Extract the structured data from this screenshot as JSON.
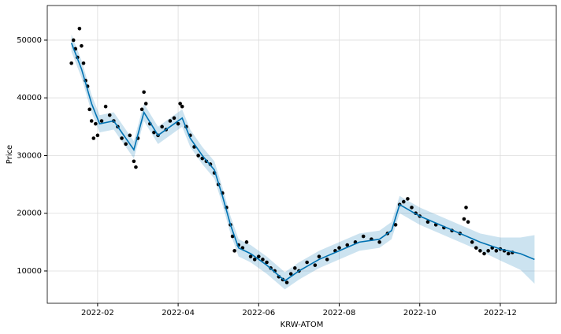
{
  "chart_data": {
    "type": "forecast",
    "x_label": "KRW-ATOM",
    "y_label": "Price",
    "xlim": [
      0.75,
      13.39
    ],
    "ylim": [
      4400,
      56000
    ],
    "xticks": [
      {
        "value": 2,
        "label": "2022-02"
      },
      {
        "value": 4,
        "label": "2022-04"
      },
      {
        "value": 6,
        "label": "2022-06"
      },
      {
        "value": 8,
        "label": "2022-08"
      },
      {
        "value": 10,
        "label": "2022-10"
      },
      {
        "value": 12,
        "label": "2022-12"
      }
    ],
    "yticks": [
      10000,
      20000,
      30000,
      40000,
      50000
    ],
    "grid": true,
    "forecast": {
      "color": "#0072B2",
      "x": [
        1.35,
        1.6,
        1.85,
        2.05,
        2.4,
        2.55,
        2.9,
        3.15,
        3.5,
        3.8,
        4.1,
        4.3,
        4.6,
        4.9,
        5.1,
        5.3,
        5.5,
        5.8,
        6.2,
        6.65,
        7.0,
        7.5,
        8.0,
        8.5,
        9.0,
        9.3,
        9.5,
        10.0,
        10.5,
        11.0,
        11.5,
        12.0,
        12.5,
        12.85
      ],
      "values": [
        49500,
        45000,
        39000,
        35500,
        36000,
        34500,
        31000,
        37500,
        33500,
        35000,
        36500,
        33000,
        30000,
        27500,
        23000,
        18000,
        14000,
        13000,
        11000,
        8300,
        10000,
        12000,
        13500,
        15000,
        15500,
        17000,
        21500,
        19500,
        18000,
        16500,
        15000,
        13800,
        13000,
        12000
      ],
      "upper": [
        51000,
        46500,
        40500,
        37000,
        37500,
        36000,
        32500,
        39000,
        35000,
        36500,
        38000,
        34500,
        31500,
        29000,
        24500,
        19500,
        15500,
        14500,
        12500,
        9800,
        11500,
        13500,
        15000,
        16500,
        17000,
        18500,
        23000,
        21000,
        19500,
        18000,
        16500,
        15800,
        15800,
        16200
      ],
      "lower": [
        48000,
        43500,
        37500,
        34000,
        34500,
        33000,
        29500,
        36000,
        32000,
        33500,
        35000,
        31500,
        28500,
        26000,
        21500,
        16500,
        12500,
        11500,
        9500,
        6800,
        8500,
        10500,
        12000,
        13500,
        14000,
        15500,
        20000,
        18000,
        16500,
        15000,
        13500,
        11800,
        10200,
        7800
      ]
    },
    "observed": {
      "color": "#000000",
      "x": [
        1.35,
        1.4,
        1.45,
        1.5,
        1.55,
        1.6,
        1.65,
        1.7,
        1.75,
        1.8,
        1.85,
        1.9,
        1.95,
        2.0,
        2.1,
        2.2,
        2.3,
        2.4,
        2.5,
        2.6,
        2.7,
        2.8,
        2.9,
        2.95,
        3.0,
        3.1,
        3.15,
        3.2,
        3.3,
        3.4,
        3.5,
        3.6,
        3.7,
        3.8,
        3.9,
        4.0,
        4.05,
        4.1,
        4.2,
        4.3,
        4.4,
        4.5,
        4.6,
        4.7,
        4.8,
        4.9,
        5.0,
        5.1,
        5.2,
        5.3,
        5.35,
        5.4,
        5.5,
        5.6,
        5.7,
        5.8,
        5.9,
        6.0,
        6.1,
        6.2,
        6.3,
        6.4,
        6.5,
        6.6,
        6.7,
        6.8,
        6.9,
        7.0,
        7.2,
        7.4,
        7.5,
        7.7,
        7.9,
        8.0,
        8.2,
        8.4,
        8.6,
        8.8,
        9.0,
        9.2,
        9.4,
        9.5,
        9.6,
        9.7,
        9.8,
        9.9,
        10.0,
        10.2,
        10.4,
        10.6,
        10.8,
        11.0,
        11.1,
        11.15,
        11.2,
        11.3,
        11.4,
        11.5,
        11.6,
        11.7,
        11.8,
        11.9,
        12.0,
        12.1,
        12.2,
        12.3
      ],
      "values": [
        46000,
        50000,
        48500,
        47000,
        52000,
        49000,
        46000,
        43000,
        42000,
        38000,
        36000,
        33000,
        35500,
        33500,
        36000,
        38500,
        37000,
        36000,
        35000,
        33000,
        32000,
        33500,
        29000,
        28000,
        33000,
        38000,
        41000,
        39000,
        35500,
        34000,
        33500,
        35000,
        34500,
        36000,
        36500,
        35500,
        39000,
        38500,
        35000,
        33500,
        31500,
        30000,
        29500,
        29000,
        28500,
        27000,
        25000,
        23500,
        21000,
        18000,
        16000,
        13500,
        14500,
        14000,
        15000,
        12500,
        12000,
        12500,
        12000,
        11500,
        10500,
        10000,
        9000,
        8500,
        8000,
        9500,
        10500,
        10000,
        11500,
        11000,
        12500,
        12000,
        13500,
        14000,
        14500,
        15000,
        16000,
        15500,
        15000,
        16500,
        18000,
        21500,
        22000,
        22500,
        21000,
        20000,
        19500,
        18500,
        18000,
        17500,
        17000,
        16500,
        19000,
        21000,
        18500,
        15000,
        14000,
        13500,
        13000,
        13500,
        14000,
        13500,
        13800,
        13500,
        13000,
        13200
      ]
    }
  }
}
